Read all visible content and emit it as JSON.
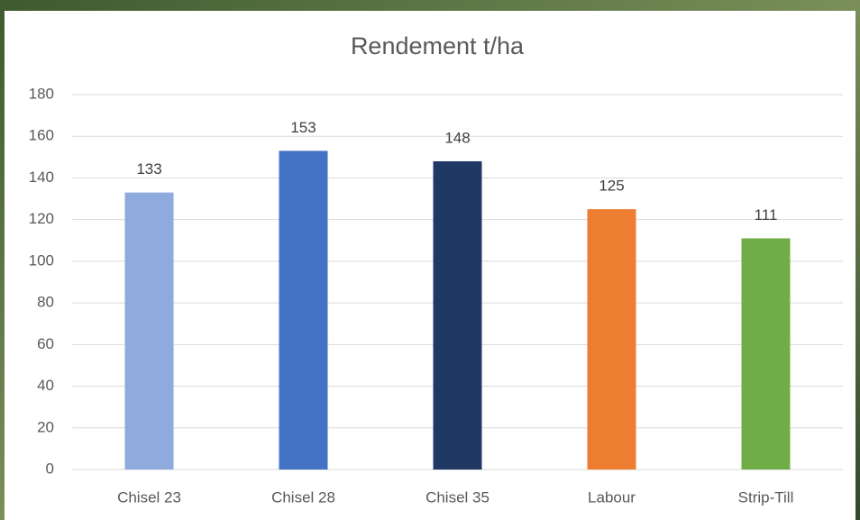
{
  "chart_data": {
    "type": "bar",
    "title": "Rendement t/ha",
    "categories": [
      "Chisel 23",
      "Chisel 28",
      "Chisel 35",
      "Labour",
      "Strip-Till"
    ],
    "values": [
      133,
      153,
      148,
      125,
      111
    ],
    "colors": [
      "#8faadc",
      "#4472c4",
      "#1f3864",
      "#ed7d31",
      "#70ad47"
    ],
    "ylim": [
      0,
      180
    ],
    "yticks": [
      0,
      20,
      40,
      60,
      80,
      100,
      120,
      140,
      160,
      180
    ],
    "grid": true
  }
}
